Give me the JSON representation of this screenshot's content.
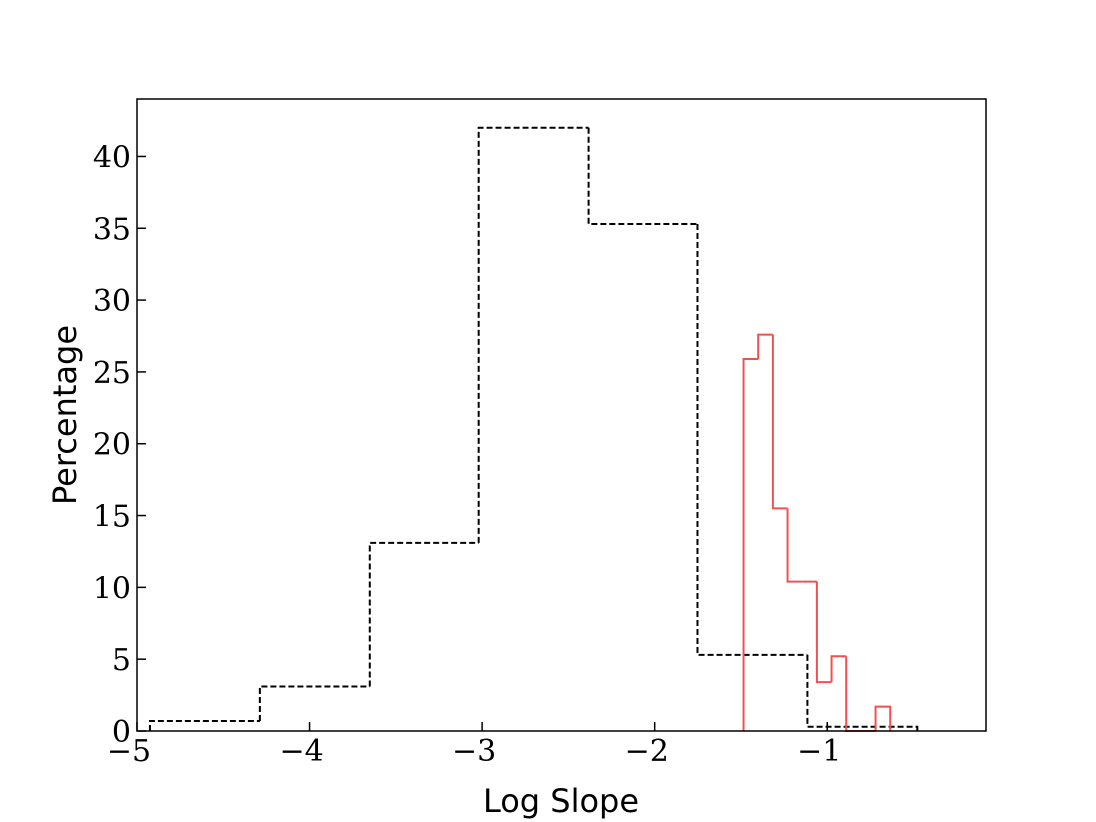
{
  "chart_data": {
    "type": "histogram_step",
    "xlabel": "Log Slope",
    "ylabel": "Percentage",
    "xlim": [
      -5,
      -0.08
    ],
    "ylim": [
      0,
      44
    ],
    "xticks": [
      {
        "value": -5,
        "label": "−5"
      },
      {
        "value": -4,
        "label": "−4"
      },
      {
        "value": -3,
        "label": "−3"
      },
      {
        "value": -2,
        "label": "−2"
      },
      {
        "value": -1,
        "label": "−1"
      }
    ],
    "yticks": [
      0,
      5,
      10,
      15,
      20,
      25,
      30,
      35,
      40
    ],
    "series": [
      {
        "color": "#000000",
        "dashed": true,
        "bins": [
          -4.925,
          -4.288,
          -3.651,
          -3.02,
          -2.383,
          -1.752,
          -1.115,
          -0.478
        ],
        "values": [
          0.7,
          3.1,
          13.1,
          42.0,
          35.3,
          5.3,
          0.3
        ]
      },
      {
        "color": "#f05050",
        "dashed": false,
        "bins": [
          -1.485,
          -1.4,
          -1.315,
          -1.23,
          -1.145,
          -1.06,
          -0.975,
          -0.89,
          -0.805,
          -0.72,
          -0.635
        ],
        "values": [
          25.9,
          27.6,
          15.5,
          10.4,
          10.4,
          3.4,
          5.2,
          0,
          0,
          1.7
        ]
      }
    ]
  }
}
